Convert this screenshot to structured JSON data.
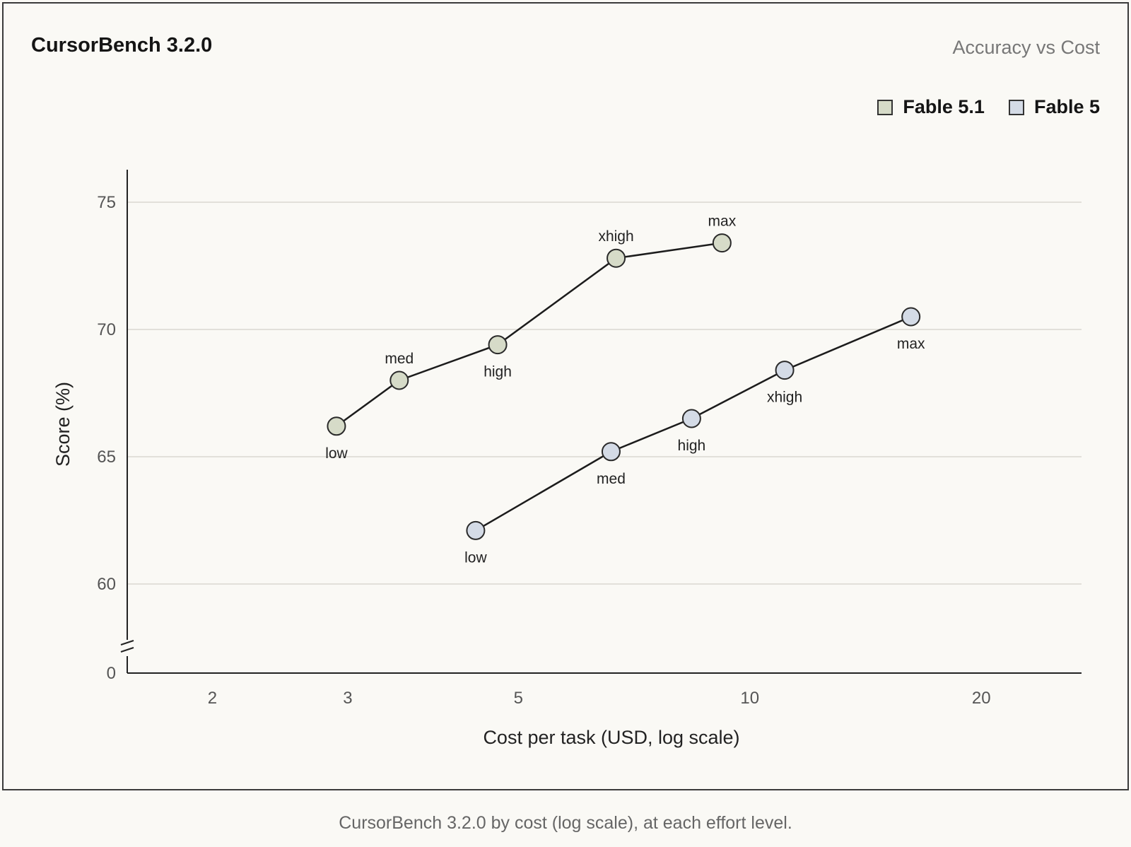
{
  "header": {
    "title": "CursorBench 3.2.0",
    "subtitle": "Accuracy vs Cost"
  },
  "caption": "CursorBench 3.2.0 by cost (log scale), at each effort level.",
  "chart_data": {
    "type": "line",
    "title": "CursorBench 3.2.0",
    "subtitle": "Accuracy vs Cost",
    "xlabel": "Cost per task (USD, log scale)",
    "ylabel": "Score (%)",
    "x_scale": "log",
    "xlim": [
      1.55,
      27
    ],
    "x_ticks": [
      2,
      3,
      5,
      10,
      20
    ],
    "x_tick_labels": [
      "2",
      "3",
      "5",
      "10",
      "20"
    ],
    "ylim": [
      58.5,
      76
    ],
    "y_ticks": [
      60,
      65,
      70,
      75
    ],
    "y_tick_labels": [
      "60",
      "65",
      "70",
      "75"
    ],
    "y_axis_break": true,
    "y_break_label": "0",
    "grid": "horizontal",
    "legend_position": "top-right",
    "series": [
      {
        "name": "Fable 5.1",
        "color": "#d6dbc8",
        "points": [
          {
            "x": 2.9,
            "y": 66.2,
            "label": "low",
            "label_pos": "below"
          },
          {
            "x": 3.5,
            "y": 68.0,
            "label": "med",
            "label_pos": "above"
          },
          {
            "x": 4.7,
            "y": 69.4,
            "label": "high",
            "label_pos": "below"
          },
          {
            "x": 6.7,
            "y": 72.8,
            "label": "xhigh",
            "label_pos": "above"
          },
          {
            "x": 9.2,
            "y": 73.4,
            "label": "max",
            "label_pos": "above"
          }
        ]
      },
      {
        "name": "Fable 5",
        "color": "#d4dbe6",
        "points": [
          {
            "x": 4.4,
            "y": 62.1,
            "label": "low",
            "label_pos": "below"
          },
          {
            "x": 6.6,
            "y": 65.2,
            "label": "med",
            "label_pos": "below"
          },
          {
            "x": 8.4,
            "y": 66.5,
            "label": "high",
            "label_pos": "below"
          },
          {
            "x": 11.1,
            "y": 68.4,
            "label": "xhigh",
            "label_pos": "below"
          },
          {
            "x": 16.2,
            "y": 70.5,
            "label": "max",
            "label_pos": "below"
          }
        ]
      }
    ]
  }
}
